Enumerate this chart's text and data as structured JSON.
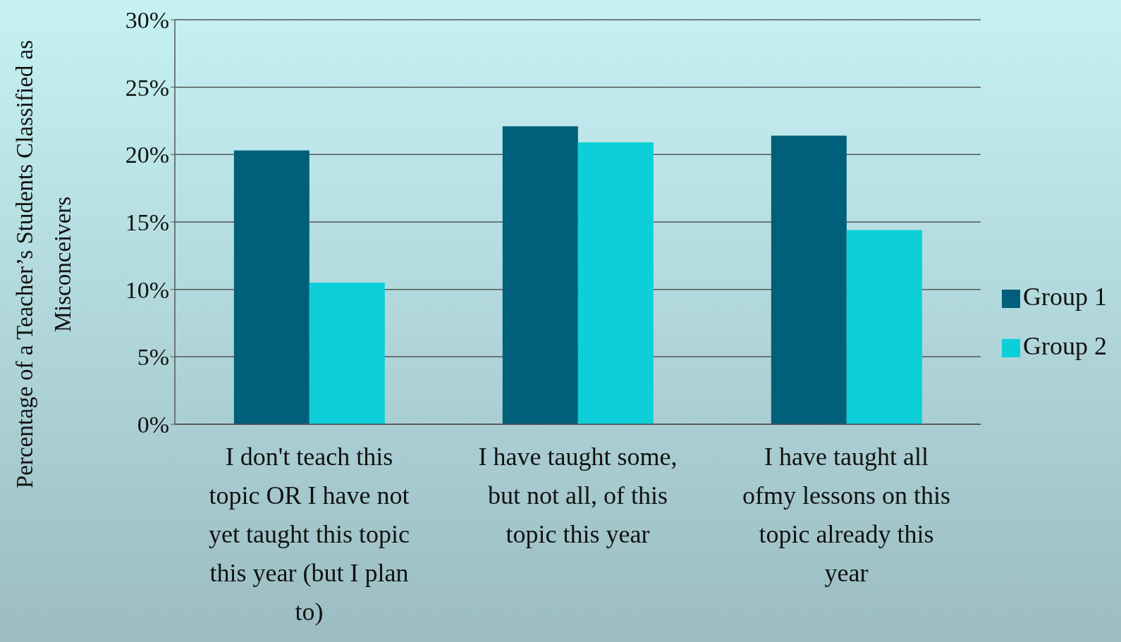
{
  "chart_data": {
    "type": "bar",
    "ylabel": "Percentage of a Teacher’s Students Classified as Misconceivers",
    "categories": [
      "I don't teach this topic OR I have not yet taught this topic this year (but I plan to)",
      "I have taught some, but not all, of this topic this year",
      "I have taught all ofmy lessons on this topic already this year"
    ],
    "series": [
      {
        "name": "Group 1",
        "color": "#005f7a",
        "values": [
          20.3,
          22.1,
          21.4
        ]
      },
      {
        "name": "Group 2",
        "color": "#0dcfd8",
        "values": [
          10.5,
          20.9,
          14.4
        ]
      }
    ],
    "ylim": [
      0,
      30
    ],
    "yticks": [
      {
        "value": 0,
        "label": "0%"
      },
      {
        "value": 5,
        "label": "5%"
      },
      {
        "value": 10,
        "label": "10%"
      },
      {
        "value": 15,
        "label": "15%"
      },
      {
        "value": 20,
        "label": "20%"
      },
      {
        "value": 25,
        "label": "25%"
      },
      {
        "value": 30,
        "label": "30%"
      }
    ],
    "grid": "y",
    "legend": "right"
  }
}
